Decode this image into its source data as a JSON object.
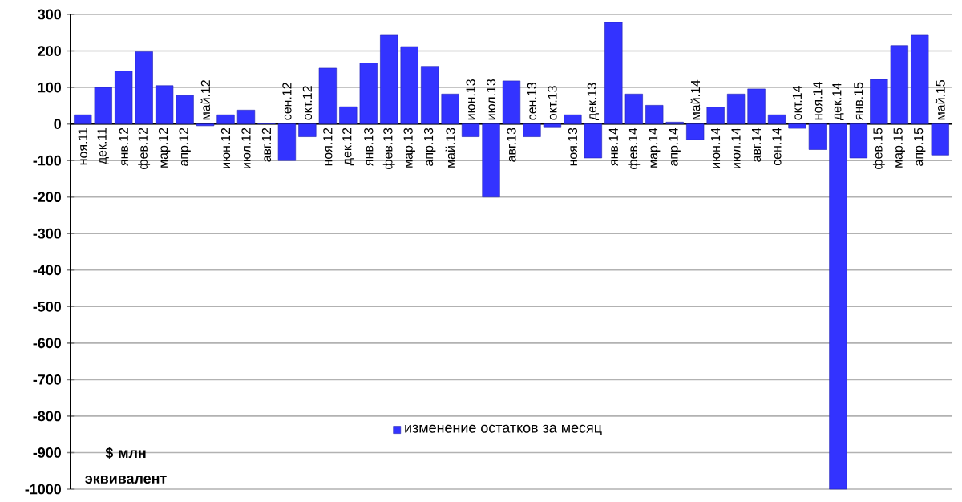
{
  "chart_data": {
    "type": "bar",
    "categories": [
      "ноя.11",
      "дек.11",
      "янв.12",
      "фев.12",
      "мар.12",
      "апр.12",
      "май.12",
      "июн.12",
      "июл.12",
      "авг.12",
      "сен.12",
      "окт.12",
      "ноя.12",
      "дек.12",
      "янв.13",
      "фев.13",
      "мар.13",
      "апр.13",
      "май.13",
      "июн.13",
      "июл.13",
      "авг.13",
      "сен.13",
      "окт.13",
      "ноя.13",
      "дек.13",
      "янв.14",
      "фев.14",
      "мар.14",
      "апр.14",
      "май.14",
      "июн.14",
      "июл.14",
      "авг.14",
      "сен.14",
      "окт.14",
      "ноя.14",
      "дек.14",
      "янв.15",
      "фев.15",
      "мар.15",
      "апр.15",
      "май.15"
    ],
    "series": [
      {
        "name": "изменение остатков за месяц",
        "color": "#3333ff",
        "values": [
          25,
          100,
          145,
          198,
          105,
          78,
          -5,
          25,
          38,
          2,
          -100,
          -35,
          153,
          47,
          167,
          243,
          212,
          158,
          82,
          -35,
          -200,
          118,
          -35,
          -8,
          25,
          -93,
          278,
          82,
          51,
          5,
          -43,
          46,
          82,
          96,
          25,
          -12,
          -70,
          -1000,
          -93,
          122,
          215,
          243,
          -85
        ]
      }
    ],
    "ylim": [
      -1000,
      300
    ],
    "yticks": [
      -1000,
      -900,
      -800,
      -700,
      -600,
      -500,
      -400,
      -300,
      -200,
      -100,
      0,
      100,
      200,
      300
    ],
    "grid": "y",
    "legend": "bottom",
    "annotations": [
      "$ млн эквивалент"
    ]
  }
}
